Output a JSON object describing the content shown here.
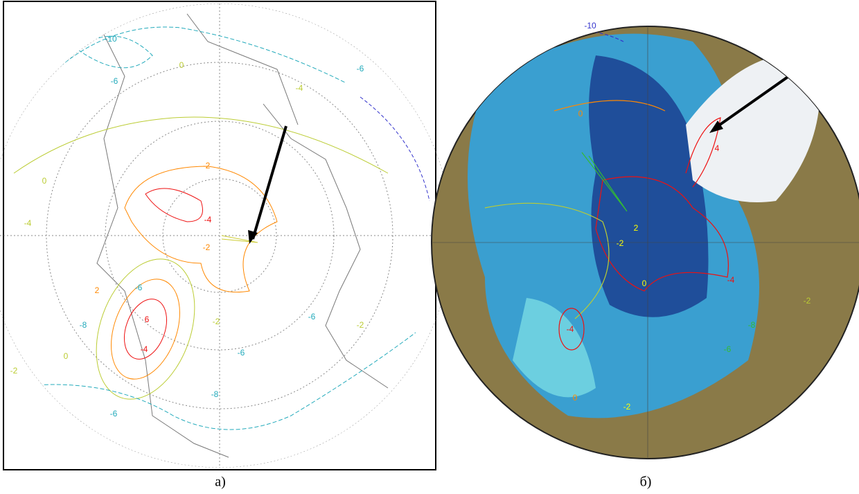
{
  "panels": [
    {
      "caption": "а)",
      "contour_labels": [
        "-10",
        "-6",
        "-6",
        "0",
        "-4",
        "-2",
        "-4",
        "-2",
        "0",
        "-4",
        "2",
        "-6",
        "-8",
        "6",
        "-4",
        "-2",
        "-6",
        "-8",
        "-6",
        "-2",
        "-6",
        "-2",
        "0"
      ]
    },
    {
      "caption": "б)",
      "contour_labels": [
        "-10",
        "0",
        "4",
        "-2",
        "2",
        "0",
        "-4",
        "-6",
        "-8",
        "-4",
        "0",
        "-2",
        "-2"
      ]
    }
  ]
}
